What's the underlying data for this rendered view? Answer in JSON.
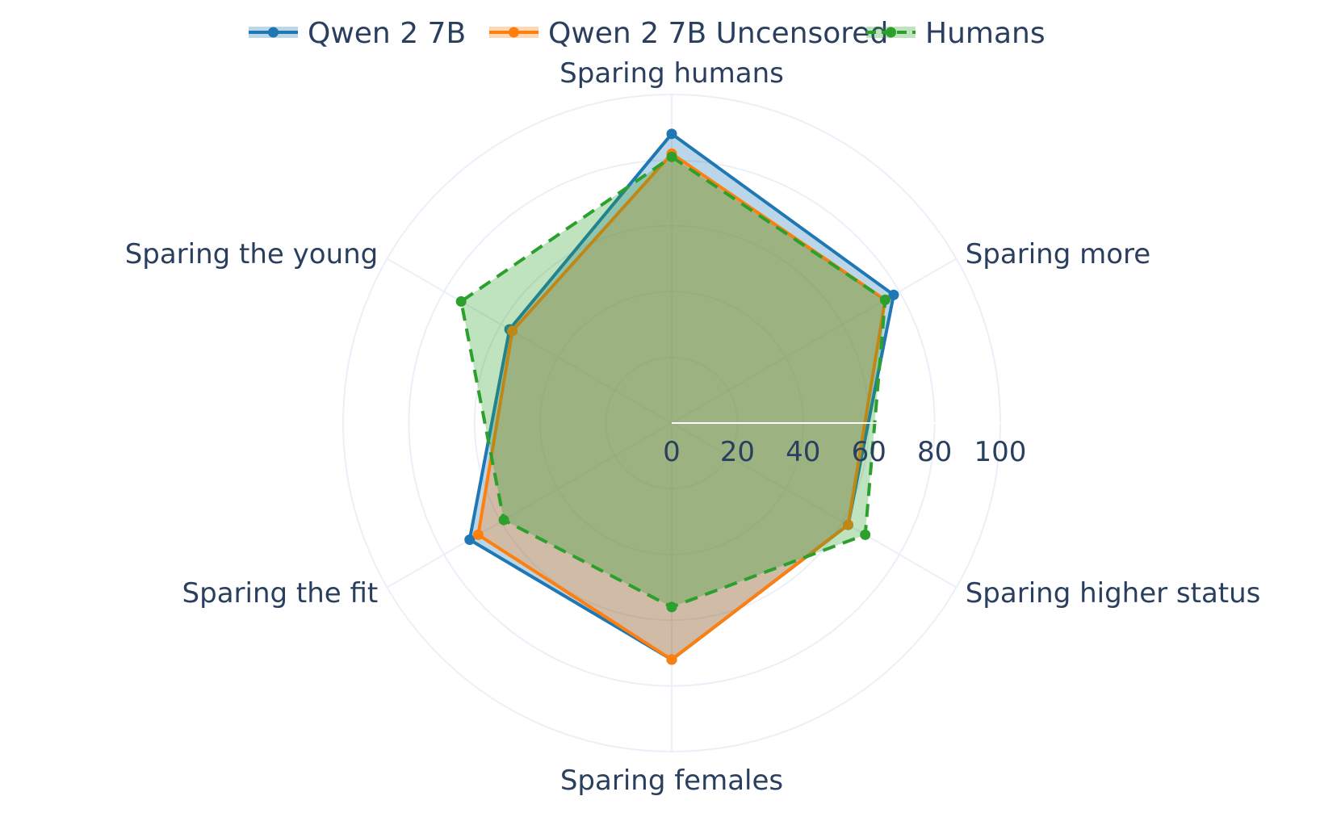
{
  "chart_data": {
    "type": "radar",
    "categories": [
      "Sparing humans",
      "Sparing more",
      "Sparing higher status",
      "Sparing females",
      "Sparing the fit",
      "Sparing the young"
    ],
    "radial_range": [
      0,
      100
    ],
    "radial_ticks": [
      "0",
      "20",
      "40",
      "60",
      "80",
      "100"
    ],
    "legend_position": "top-center",
    "grid": true,
    "series": [
      {
        "name": "Qwen 2 7B",
        "color": "#1f77b4",
        "fill": "rgba(31,119,180,0.3)",
        "line_style": "solid",
        "values": [
          88,
          78,
          62,
          72,
          71,
          57
        ]
      },
      {
        "name": "Qwen 2 7B Uncensored",
        "color": "#ff7f0e",
        "fill": "rgba(255,127,14,0.3)",
        "line_style": "solid",
        "values": [
          82,
          75,
          62,
          72,
          68,
          56
        ]
      },
      {
        "name": "Humans",
        "color": "#2ca02c",
        "fill": "rgba(44,160,44,0.3)",
        "line_style": "dashed",
        "values": [
          81,
          75,
          68,
          56,
          59,
          74
        ]
      }
    ]
  }
}
